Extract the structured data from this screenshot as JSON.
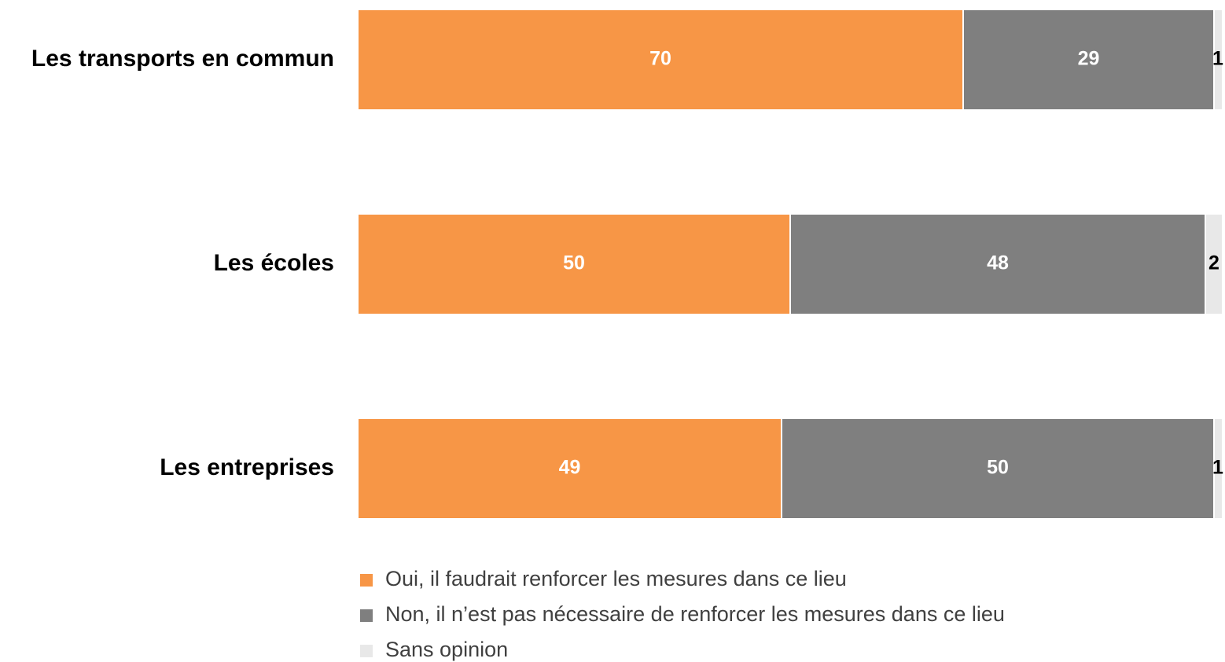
{
  "chart_data": {
    "type": "stacked_bar_horizontal",
    "categories": [
      "Les transports en commun",
      "Les écoles",
      "Les entreprises"
    ],
    "series": [
      {
        "name": "Oui, il faudrait renforcer les mesures dans ce lieu",
        "color": "#f79646",
        "values": [
          70,
          50,
          49
        ]
      },
      {
        "name": "Non, il n’est pas nécessaire de renforcer les mesures dans ce lieu",
        "color": "#7f7f7f",
        "values": [
          29,
          48,
          50
        ]
      },
      {
        "name": "Sans opinion",
        "color": "#e8e8e8",
        "values": [
          1,
          2,
          1
        ]
      }
    ],
    "xlim": [
      0,
      100
    ]
  }
}
